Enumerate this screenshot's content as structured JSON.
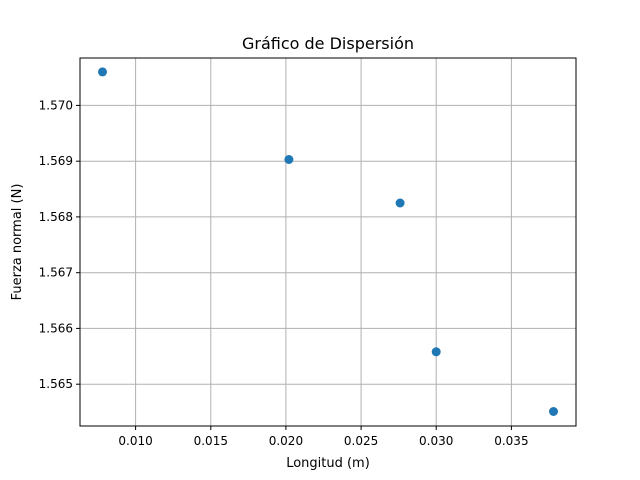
{
  "chart_data": {
    "type": "scatter",
    "title": "Gráfico de Dispersión",
    "xlabel": "Longitud (m)",
    "ylabel": "Fuerza normal (N)",
    "xlim": [
      0.0063,
      0.0393
    ],
    "ylim": [
      1.56425,
      1.57085
    ],
    "xticks": [
      0.01,
      0.015,
      0.02,
      0.025,
      0.03,
      0.035
    ],
    "xtick_labels": [
      "0.010",
      "0.015",
      "0.020",
      "0.025",
      "0.030",
      "0.035"
    ],
    "yticks": [
      1.565,
      1.566,
      1.567,
      1.568,
      1.569,
      1.57
    ],
    "ytick_labels": [
      "1.565",
      "1.566",
      "1.567",
      "1.568",
      "1.569",
      "1.570"
    ],
    "grid": true,
    "marker_color": "#1f77b4",
    "points": [
      {
        "x": 0.0078,
        "y": 1.5706
      },
      {
        "x": 0.0202,
        "y": 1.56903
      },
      {
        "x": 0.0276,
        "y": 1.56825
      },
      {
        "x": 0.03,
        "y": 1.56558
      },
      {
        "x": 0.0378,
        "y": 1.56451
      }
    ]
  }
}
